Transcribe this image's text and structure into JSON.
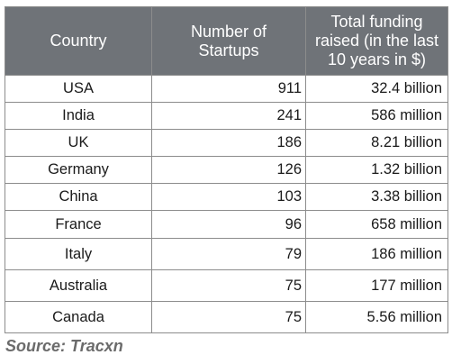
{
  "chart_data": {
    "type": "table",
    "columns": [
      "Country",
      "Number of Startups",
      "Total funding raised (in the last 10 years in $)"
    ],
    "header_lines": [
      [
        "Country"
      ],
      [
        "Number of",
        "Startups"
      ],
      [
        "Total funding",
        "raised (in the last",
        "10 years in $)"
      ]
    ],
    "rows": [
      [
        "USA",
        "911",
        "32.4 billion"
      ],
      [
        "India",
        "241",
        "586 million"
      ],
      [
        "UK",
        "186",
        "8.21 billion"
      ],
      [
        "Germany",
        "126",
        "1.32 billion"
      ],
      [
        "China",
        "103",
        "3.38 billion"
      ],
      [
        "France",
        "96",
        "658 million"
      ],
      [
        "Italy",
        "79",
        "186 million"
      ],
      [
        "Australia",
        "75",
        "177 million"
      ],
      [
        "Canada",
        "75",
        "5.56 million"
      ]
    ]
  },
  "source": "Source: Tracxn",
  "colors": {
    "header_bg": "#6f7378",
    "header_text": "#ffffff",
    "border": "#8c8c8c",
    "source_text": "#6b6b6b"
  }
}
